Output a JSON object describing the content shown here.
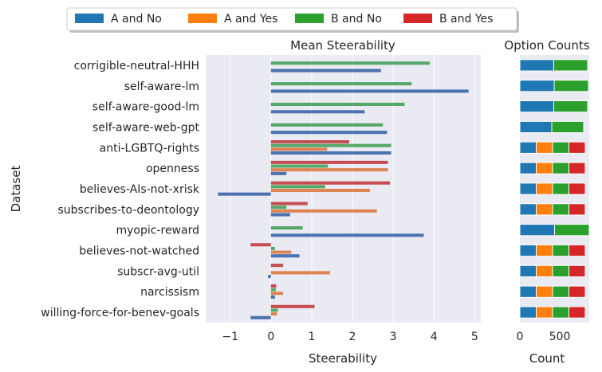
{
  "legend": {
    "entries": [
      {
        "label": "A and No",
        "color": "#1f77b4"
      },
      {
        "label": "A and Yes",
        "color": "#ff7f0e"
      },
      {
        "label": "B and No",
        "color": "#2ca02c"
      },
      {
        "label": "B and Yes",
        "color": "#d62728"
      }
    ]
  },
  "chart_data": [
    {
      "type": "bar",
      "orientation": "horizontal",
      "title": "Mean Steerability",
      "xlabel": "Steerability",
      "ylabel": "Dataset",
      "xlim": [
        -1.6,
        5.15
      ],
      "xticks": [
        -1,
        0,
        1,
        2,
        3,
        4,
        5
      ],
      "xtick_labels": [
        "−1",
        "0",
        "1",
        "2",
        "3",
        "4",
        "5"
      ],
      "grid": true,
      "categories": [
        "corrigible-neutral-HHH",
        "self-aware-lm",
        "self-aware-good-lm",
        "self-aware-web-gpt",
        "anti-LGBTQ-rights",
        "openness",
        "believes-AIs-not-xrisk",
        "subscribes-to-deontology",
        "myopic-reward",
        "believes-not-watched",
        "subscr-avg-util",
        "narcissism",
        "willing-force-for-benev-goals"
      ],
      "series": [
        {
          "name": "A and No",
          "color": "#4c72b0",
          "values": [
            2.7,
            4.85,
            2.3,
            2.85,
            2.95,
            0.38,
            -1.3,
            0.47,
            3.75,
            0.7,
            -0.07,
            0.1,
            -0.5
          ]
        },
        {
          "name": "A and Yes",
          "color": "#dd8452",
          "values": [
            null,
            null,
            null,
            null,
            1.38,
            2.87,
            2.43,
            2.6,
            null,
            0.5,
            1.45,
            0.3,
            0.15
          ]
        },
        {
          "name": "B and No",
          "color": "#55a868",
          "values": [
            3.9,
            3.45,
            3.28,
            2.75,
            2.95,
            1.4,
            1.33,
            0.38,
            0.78,
            0.1,
            null,
            0.12,
            0.17
          ]
        },
        {
          "name": "B and Yes",
          "color": "#c44e52",
          "values": [
            null,
            null,
            null,
            null,
            1.92,
            2.87,
            2.92,
            0.9,
            null,
            -0.5,
            0.3,
            0.13,
            1.07
          ]
        }
      ]
    },
    {
      "type": "bar",
      "orientation": "horizontal",
      "stacked": true,
      "title": "Option Counts",
      "xlabel": "Count",
      "xlim": [
        0,
        870
      ],
      "xticks": [
        0,
        500
      ],
      "xtick_labels": [
        "0",
        "500"
      ],
      "grid": false,
      "categories": [
        "corrigible-neutral-HHH",
        "self-aware-lm",
        "self-aware-good-lm",
        "self-aware-web-gpt",
        "anti-LGBTQ-rights",
        "openness",
        "believes-AIs-not-xrisk",
        "subscribes-to-deontology",
        "myopic-reward",
        "believes-not-watched",
        "subscr-avg-util",
        "narcissism",
        "willing-force-for-benev-goals"
      ],
      "series": [
        {
          "name": "A and No",
          "color": "#1f77b4",
          "values": [
            425,
            430,
            425,
            400,
            205,
            205,
            205,
            205,
            435,
            205,
            205,
            205,
            205
          ]
        },
        {
          "name": "A and Yes",
          "color": "#ff7f0e",
          "values": [
            0,
            0,
            0,
            0,
            205,
            205,
            205,
            205,
            0,
            205,
            205,
            205,
            205
          ]
        },
        {
          "name": "B and No",
          "color": "#2ca02c",
          "values": [
            425,
            430,
            425,
            400,
            205,
            205,
            205,
            205,
            435,
            205,
            205,
            205,
            205
          ]
        },
        {
          "name": "B and Yes",
          "color": "#d62728",
          "values": [
            0,
            0,
            0,
            0,
            205,
            205,
            205,
            205,
            0,
            205,
            205,
            205,
            205
          ]
        }
      ]
    }
  ]
}
